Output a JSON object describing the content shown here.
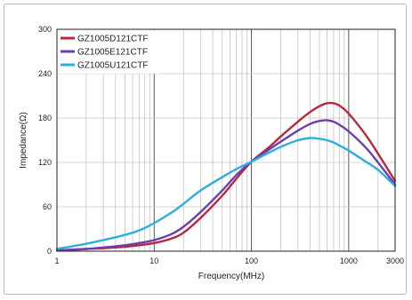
{
  "chart_data": {
    "type": "line",
    "title": "",
    "xlabel": "Frequency(MHz)",
    "ylabel": "Impedance(Ω)",
    "x_scale": "log",
    "xlim": [
      1,
      3000
    ],
    "ylim": [
      0,
      300
    ],
    "x_ticks": [
      1,
      10,
      100,
      1000,
      3000
    ],
    "x_tick_labels": [
      "1",
      "10",
      "100",
      "1000",
      "3000"
    ],
    "y_ticks": [
      0,
      60,
      120,
      180,
      240,
      300
    ],
    "y_tick_labels": [
      "0",
      "60",
      "120",
      "180",
      "240",
      "300"
    ],
    "grid": true,
    "legend_position": "top-left",
    "series": [
      {
        "name": "GZ1005D121CTF",
        "color": "#b5283e",
        "x": [
          1,
          2,
          3,
          5,
          7,
          10,
          15,
          20,
          30,
          50,
          70,
          100,
          150,
          200,
          300,
          400,
          500,
          600,
          700,
          800,
          1000,
          1500,
          2000,
          3000
        ],
        "y": [
          1,
          3,
          4,
          6,
          8,
          11,
          17,
          25,
          45,
          75,
          98,
          121,
          140,
          155,
          175,
          188,
          196,
          200,
          200,
          197,
          186,
          157,
          132,
          95
        ]
      },
      {
        "name": "GZ1005E121CTF",
        "color": "#6e3eaa",
        "x": [
          1,
          2,
          3,
          5,
          7,
          10,
          15,
          20,
          30,
          50,
          70,
          100,
          150,
          200,
          300,
          400,
          500,
          600,
          700,
          800,
          1000,
          1500,
          2000,
          3000
        ],
        "y": [
          1,
          3,
          5,
          8,
          11,
          15,
          23,
          33,
          53,
          82,
          103,
          121,
          137,
          148,
          163,
          172,
          176,
          177,
          175,
          171,
          162,
          140,
          120,
          90
        ]
      },
      {
        "name": "GZ1005U121CTF",
        "color": "#2eaee0",
        "x": [
          1,
          2,
          3,
          5,
          7,
          10,
          15,
          20,
          30,
          50,
          70,
          100,
          150,
          200,
          300,
          400,
          500,
          600,
          700,
          800,
          1000,
          1500,
          2000,
          3000
        ],
        "y": [
          3,
          10,
          15,
          22,
          28,
          38,
          52,
          64,
          82,
          100,
          111,
          121,
          133,
          141,
          150,
          153,
          152,
          150,
          147,
          143,
          136,
          121,
          110,
          88
        ]
      }
    ]
  }
}
